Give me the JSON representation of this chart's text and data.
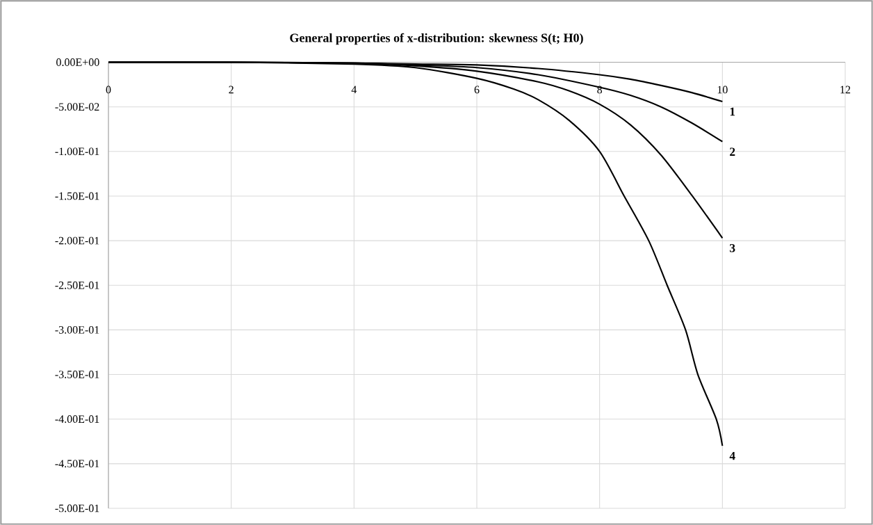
{
  "chart_data": {
    "type": "line",
    "title": "General properties of x-distribution: skewness S(t; H0)",
    "xlim": [
      0,
      12
    ],
    "xticks": [
      0,
      2,
      4,
      6,
      8,
      10,
      12
    ],
    "ylim": [
      -0.5,
      0
    ],
    "yticks": [
      {
        "value": 0,
        "label": "0.00E+00"
      },
      {
        "value": -0.05,
        "label": "-5.00E-02"
      },
      {
        "value": -0.1,
        "label": "-1.00E-01"
      },
      {
        "value": -0.15,
        "label": "-1.50E-01"
      },
      {
        "value": -0.2,
        "label": "-2.00E-01"
      },
      {
        "value": -0.25,
        "label": "-2.50E-01"
      },
      {
        "value": -0.3,
        "label": "-3.00E-01"
      },
      {
        "value": -0.35,
        "label": "-3.50E-01"
      },
      {
        "value": -0.4,
        "label": "-4.00E-01"
      },
      {
        "value": -0.45,
        "label": "-4.50E-01"
      },
      {
        "value": -0.5,
        "label": "-5.00E-01"
      }
    ],
    "grid": true,
    "marker": "none",
    "line_style": "solid",
    "series": [
      {
        "name": "1",
        "color": "#000000",
        "x": [
          0,
          2,
          4,
          5,
          6,
          7,
          8,
          8.5,
          9,
          9.5,
          10
        ],
        "values": [
          0,
          0,
          -0.001,
          -0.002,
          -0.003,
          -0.007,
          -0.014,
          -0.019,
          -0.026,
          -0.034,
          -0.044
        ]
      },
      {
        "name": "2",
        "color": "#000000",
        "x": [
          0,
          2,
          4,
          5,
          6,
          7,
          8,
          8.5,
          9,
          9.5,
          10
        ],
        "values": [
          0,
          0,
          -0.001,
          -0.003,
          -0.006,
          -0.014,
          -0.028,
          -0.037,
          -0.05,
          -0.068,
          -0.089
        ]
      },
      {
        "name": "3",
        "color": "#000000",
        "x": [
          0,
          2,
          4,
          5,
          6,
          7,
          7.5,
          8,
          8.5,
          9,
          9.5,
          10
        ],
        "values": [
          0,
          0,
          -0.001,
          -0.004,
          -0.01,
          -0.022,
          -0.032,
          -0.047,
          -0.07,
          -0.104,
          -0.149,
          -0.197
        ]
      },
      {
        "name": "4",
        "color": "#000000",
        "x": [
          0,
          2,
          4,
          5,
          6,
          6.6,
          7,
          7.5,
          8,
          8.4,
          8.8,
          9.1,
          9.4,
          9.6,
          9.9,
          10
        ],
        "values": [
          0,
          0,
          -0.002,
          -0.006,
          -0.018,
          -0.03,
          -0.042,
          -0.065,
          -0.1,
          -0.15,
          -0.2,
          -0.25,
          -0.3,
          -0.35,
          -0.4,
          -0.43
        ]
      }
    ]
  }
}
